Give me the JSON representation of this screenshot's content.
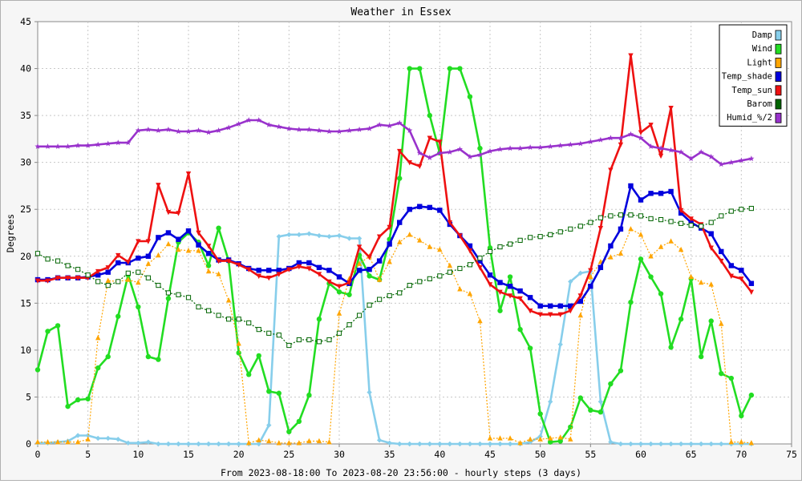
{
  "chart_data": {
    "type": "line",
    "title": "Weather in Essex",
    "xlabel": "From 2023-08-18:00 To 2023-08-20 23:56:00 - hourly steps (3 days)",
    "ylabel": "Degrees",
    "xlim": [
      0,
      75
    ],
    "ylim": [
      0,
      45
    ],
    "xticks": [
      0,
      5,
      10,
      15,
      20,
      25,
      30,
      35,
      40,
      45,
      50,
      55,
      60,
      65,
      70,
      75
    ],
    "yticks": [
      0,
      5,
      10,
      15,
      20,
      25,
      30,
      35,
      40,
      45
    ],
    "grid": true,
    "legend_position": "top-right",
    "series": [
      {
        "name": "Damp",
        "color": "#87ceeb",
        "marker": "diamond",
        "dashed": false,
        "x": [
          0,
          1,
          2,
          3,
          4,
          5,
          6,
          7,
          8,
          9,
          10,
          11,
          12,
          13,
          14,
          15,
          16,
          17,
          18,
          19,
          20,
          21,
          22,
          23,
          24,
          25,
          26,
          27,
          28,
          29,
          30,
          31,
          32,
          33,
          34,
          35,
          36,
          37,
          38,
          39,
          40,
          41,
          42,
          43,
          44,
          45,
          46,
          47,
          48,
          49,
          50,
          51,
          52,
          53,
          54,
          55,
          56,
          57,
          58,
          59,
          60,
          61,
          62,
          63,
          64,
          65,
          66,
          67,
          68,
          69,
          70,
          71
        ],
        "y": [
          0.1,
          0.1,
          0.2,
          0.3,
          0.9,
          0.9,
          0.6,
          0.6,
          0.5,
          0.1,
          0.1,
          0.2,
          0,
          0,
          0,
          0,
          0,
          0,
          0,
          0,
          0,
          0,
          0,
          2,
          22.1,
          22.3,
          22.3,
          22.4,
          22.2,
          22.1,
          22.2,
          21.9,
          21.9,
          5.5,
          0.4,
          0.1,
          0,
          0,
          0,
          0,
          0,
          0,
          0,
          0,
          0,
          0,
          0,
          0,
          0,
          0.2,
          0.8,
          4.5,
          10.6,
          17.3,
          18.2,
          18.4,
          4.5,
          0.2,
          0,
          0,
          0,
          0,
          0,
          0,
          0,
          0,
          0,
          0,
          0,
          0,
          0,
          0
        ]
      },
      {
        "name": "Wind",
        "color": "#22dd22",
        "marker": "circle",
        "dashed": false,
        "x": [
          0,
          1,
          2,
          3,
          4,
          5,
          6,
          7,
          8,
          9,
          10,
          11,
          12,
          13,
          14,
          15,
          16,
          17,
          18,
          19,
          20,
          21,
          22,
          23,
          24,
          25,
          26,
          27,
          28,
          29,
          30,
          31,
          32,
          33,
          34,
          35,
          36,
          37,
          38,
          39,
          40,
          41,
          42,
          43,
          44,
          45,
          46,
          47,
          48,
          49,
          50,
          51,
          52,
          53,
          54,
          55,
          56,
          57,
          58,
          59,
          60,
          61,
          62,
          63,
          64,
          65,
          66,
          67,
          68,
          69,
          70,
          71
        ],
        "y": [
          7.9,
          12,
          12.6,
          4,
          4.7,
          4.8,
          8.1,
          9.3,
          13.6,
          18,
          14.6,
          9.3,
          9,
          15.5,
          21.5,
          22.5,
          21.5,
          19,
          23,
          19.5,
          9.7,
          7.4,
          9.4,
          5.6,
          5.4,
          1.3,
          2.4,
          5.2,
          13.3,
          17.1,
          16.2,
          15.9,
          20.1,
          17.9,
          17.5,
          21.8,
          28.3,
          40,
          40,
          35,
          31,
          40,
          40,
          37,
          31.5,
          20.9,
          14.2,
          17.8,
          12.2,
          10.2,
          3.2,
          0.2,
          0.3,
          1.8,
          4.9,
          3.6,
          3.4,
          6.4,
          7.8,
          15.1,
          19.7,
          17.8,
          16,
          10.3,
          13.3,
          17.6,
          9.3,
          13.1,
          7.5,
          7,
          3,
          5.2
        ]
      },
      {
        "name": "Light",
        "color": "#ffa500",
        "marker": "triangle-up",
        "dashed": true,
        "x": [
          0,
          1,
          2,
          3,
          4,
          5,
          6,
          7,
          8,
          9,
          10,
          11,
          12,
          13,
          14,
          15,
          16,
          17,
          18,
          19,
          20,
          21,
          22,
          23,
          24,
          25,
          26,
          27,
          28,
          29,
          30,
          31,
          32,
          33,
          34,
          35,
          36,
          37,
          38,
          39,
          40,
          41,
          42,
          43,
          44,
          45,
          46,
          47,
          48,
          49,
          50,
          51,
          52,
          53,
          54,
          55,
          56,
          57,
          58,
          59,
          60,
          61,
          62,
          63,
          64,
          65,
          66,
          67,
          68,
          69,
          70,
          71
        ],
        "y": [
          0.2,
          0.2,
          0.2,
          0.2,
          0.2,
          0.5,
          11.3,
          17.4,
          17.3,
          17.5,
          17.2,
          19.2,
          20.1,
          21.3,
          20.7,
          20.6,
          20.6,
          18.4,
          18.1,
          15.3,
          10.7,
          0.1,
          0.4,
          0.3,
          0.1,
          0.1,
          0.1,
          0.3,
          0.3,
          0.2,
          13.9,
          17.6,
          19.2,
          20,
          17.5,
          19.4,
          21.5,
          22.3,
          21.7,
          21,
          20.7,
          19,
          16.5,
          16,
          13.1,
          0.6,
          0.6,
          0.6,
          0.1,
          0.5,
          0.5,
          0.6,
          0.7,
          0.5,
          13.7,
          17.8,
          19.4,
          19.9,
          20.3,
          22.9,
          22.3,
          20,
          21,
          21.6,
          20.7,
          17.8,
          17.2,
          17,
          12.8,
          0.2,
          0.2,
          0.1
        ]
      },
      {
        "name": "Temp_shade",
        "color": "#0000dd",
        "marker": "square",
        "dashed": false,
        "x": [
          0,
          1,
          2,
          3,
          4,
          5,
          6,
          7,
          8,
          9,
          10,
          11,
          12,
          13,
          14,
          15,
          16,
          17,
          18,
          19,
          20,
          21,
          22,
          23,
          24,
          25,
          26,
          27,
          28,
          29,
          30,
          31,
          32,
          33,
          34,
          35,
          36,
          37,
          38,
          39,
          40,
          41,
          42,
          43,
          44,
          45,
          46,
          47,
          48,
          49,
          50,
          51,
          52,
          53,
          54,
          55,
          56,
          57,
          58,
          59,
          60,
          61,
          62,
          63,
          64,
          65,
          66,
          67,
          68,
          69,
          70,
          71
        ],
        "y": [
          17.5,
          17.5,
          17.7,
          17.7,
          17.7,
          17.8,
          18,
          18.3,
          19.3,
          19.3,
          19.8,
          20,
          22,
          22.5,
          21.8,
          22.7,
          21.2,
          20.3,
          19.6,
          19.6,
          19.2,
          18.7,
          18.5,
          18.5,
          18.5,
          18.7,
          19.3,
          19.3,
          18.8,
          18.5,
          17.8,
          17.1,
          18.5,
          18.6,
          19.5,
          21.3,
          23.6,
          25,
          25.3,
          25.2,
          24.9,
          23.4,
          22.2,
          21.1,
          19.5,
          18,
          17.2,
          16.8,
          16.3,
          15.6,
          14.7,
          14.7,
          14.7,
          14.7,
          15.2,
          16.8,
          18.8,
          21.1,
          22.9,
          27.5,
          26,
          26.7,
          26.7,
          26.9,
          24.6,
          23.6,
          23,
          22.4,
          20.5,
          19,
          18.5,
          17.1
        ]
      },
      {
        "name": "Temp_sun",
        "color": "#ee1111",
        "marker": "triangle-down",
        "dashed": false,
        "x": [
          0,
          1,
          2,
          3,
          4,
          5,
          6,
          7,
          8,
          9,
          10,
          11,
          12,
          13,
          14,
          15,
          16,
          17,
          18,
          19,
          20,
          21,
          22,
          23,
          24,
          25,
          26,
          27,
          28,
          29,
          30,
          31,
          32,
          33,
          34,
          35,
          36,
          37,
          38,
          39,
          40,
          41,
          42,
          43,
          44,
          45,
          46,
          47,
          48,
          49,
          50,
          51,
          52,
          53,
          54,
          55,
          56,
          57,
          58,
          59,
          60,
          61,
          62,
          63,
          64,
          65,
          66,
          67,
          68,
          69,
          70,
          71
        ],
        "y": [
          17.4,
          17.4,
          17.7,
          17.7,
          17.7,
          17.7,
          18.4,
          18.8,
          20.1,
          19.4,
          21.6,
          21.6,
          27.6,
          24.7,
          24.6,
          28.8,
          22.5,
          21.1,
          19.5,
          19.5,
          19.1,
          18.6,
          17.9,
          17.7,
          18.1,
          18.6,
          18.9,
          18.7,
          18.1,
          17.3,
          16.8,
          17.2,
          21,
          19.9,
          22.1,
          23.1,
          31.2,
          30,
          29.6,
          32.6,
          32.2,
          23.6,
          22.2,
          20.6,
          18.8,
          17,
          16.2,
          15.8,
          15.5,
          14.2,
          13.8,
          13.8,
          13.8,
          14.2,
          15.8,
          18.5,
          23,
          29.2,
          31.9,
          41.4,
          33.2,
          34,
          30.7,
          35.8,
          24.9,
          24,
          23.4,
          20.9,
          19.5,
          17.9,
          17.6,
          16.2
        ]
      },
      {
        "name": "Barom",
        "color": "#006400",
        "marker": "open-square",
        "dashed": true,
        "x": [
          0,
          1,
          2,
          3,
          4,
          5,
          6,
          7,
          8,
          9,
          10,
          11,
          12,
          13,
          14,
          15,
          16,
          17,
          18,
          19,
          20,
          21,
          22,
          23,
          24,
          25,
          26,
          27,
          28,
          29,
          30,
          31,
          32,
          33,
          34,
          35,
          36,
          37,
          38,
          39,
          40,
          41,
          42,
          43,
          44,
          45,
          46,
          47,
          48,
          49,
          50,
          51,
          52,
          53,
          54,
          55,
          56,
          57,
          58,
          59,
          60,
          61,
          62,
          63,
          64,
          65,
          66,
          67,
          68,
          69,
          70,
          71
        ],
        "y": [
          20.3,
          19.7,
          19.5,
          19,
          18.6,
          18,
          17.3,
          16.9,
          17.3,
          18.2,
          18.3,
          17.7,
          16.9,
          16.1,
          15.9,
          15.6,
          14.6,
          14.2,
          13.7,
          13.3,
          13.3,
          12.9,
          12.2,
          11.8,
          11.6,
          10.5,
          11.1,
          11.1,
          10.9,
          11.1,
          11.8,
          12.7,
          13.7,
          14.8,
          15.4,
          15.8,
          16.1,
          16.9,
          17.3,
          17.6,
          17.9,
          18.3,
          18.7,
          19.1,
          19.8,
          20.5,
          21,
          21.3,
          21.7,
          22,
          22.1,
          22.3,
          22.6,
          22.9,
          23.2,
          23.6,
          24.1,
          24.3,
          24.4,
          24.4,
          24.3,
          24,
          23.9,
          23.7,
          23.5,
          23.3,
          23.2,
          23.6,
          24.3,
          24.8,
          25,
          25.1
        ]
      },
      {
        "name": "Humid_%/2",
        "color": "#9932cc",
        "marker": "star",
        "dashed": false,
        "x": [
          0,
          1,
          2,
          3,
          4,
          5,
          6,
          7,
          8,
          9,
          10,
          11,
          12,
          13,
          14,
          15,
          16,
          17,
          18,
          19,
          20,
          21,
          22,
          23,
          24,
          25,
          26,
          27,
          28,
          29,
          30,
          31,
          32,
          33,
          34,
          35,
          36,
          37,
          38,
          39,
          40,
          41,
          42,
          43,
          44,
          45,
          46,
          47,
          48,
          49,
          50,
          51,
          52,
          53,
          54,
          55,
          56,
          57,
          58,
          59,
          60,
          61,
          62,
          63,
          64,
          65,
          66,
          67,
          68,
          69,
          70,
          71
        ],
        "y": [
          31.7,
          31.7,
          31.7,
          31.7,
          31.8,
          31.8,
          31.9,
          32,
          32.1,
          32.1,
          33.4,
          33.5,
          33.4,
          33.5,
          33.3,
          33.3,
          33.4,
          33.2,
          33.4,
          33.7,
          34.1,
          34.5,
          34.5,
          34,
          33.8,
          33.6,
          33.5,
          33.5,
          33.4,
          33.3,
          33.3,
          33.4,
          33.5,
          33.6,
          34,
          33.9,
          34.2,
          33.4,
          31,
          30.5,
          31,
          31.1,
          31.4,
          30.6,
          30.8,
          31.2,
          31.4,
          31.5,
          31.5,
          31.6,
          31.6,
          31.7,
          31.8,
          31.9,
          32,
          32.2,
          32.4,
          32.6,
          32.6,
          33,
          32.6,
          31.7,
          31.5,
          31.3,
          31.1,
          30.4,
          31.1,
          30.6,
          29.8,
          30,
          30.2,
          30.4
        ]
      }
    ]
  }
}
